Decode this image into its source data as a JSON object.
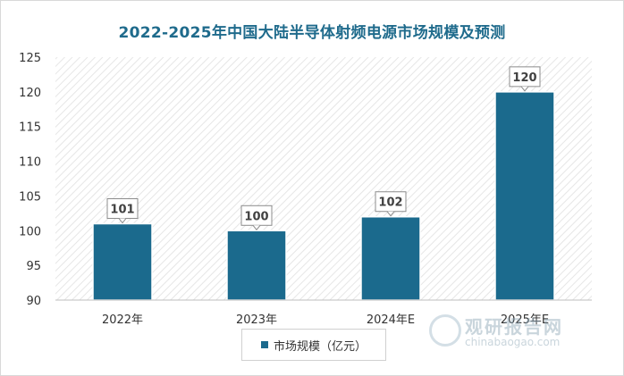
{
  "chart_data": {
    "type": "bar",
    "title": "2022-2025年中国大陆半导体射频电源市场规模及预测",
    "categories": [
      "2022年",
      "2023年",
      "2024年E",
      "2025年E"
    ],
    "series": [
      {
        "name": "市场规模（亿元）",
        "values": [
          101,
          100,
          102,
          120
        ]
      }
    ],
    "ylim": [
      90,
      125
    ],
    "yticks": [
      90,
      95,
      100,
      105,
      110,
      115,
      120,
      125
    ],
    "data_labels": true,
    "legend_position": "bottom",
    "grid": false,
    "colors": {
      "bar": "#1b6a8d",
      "title": "#1f6b8c"
    }
  },
  "watermark": {
    "cn": "观研报告网",
    "en": "chinabaogao.com"
  }
}
